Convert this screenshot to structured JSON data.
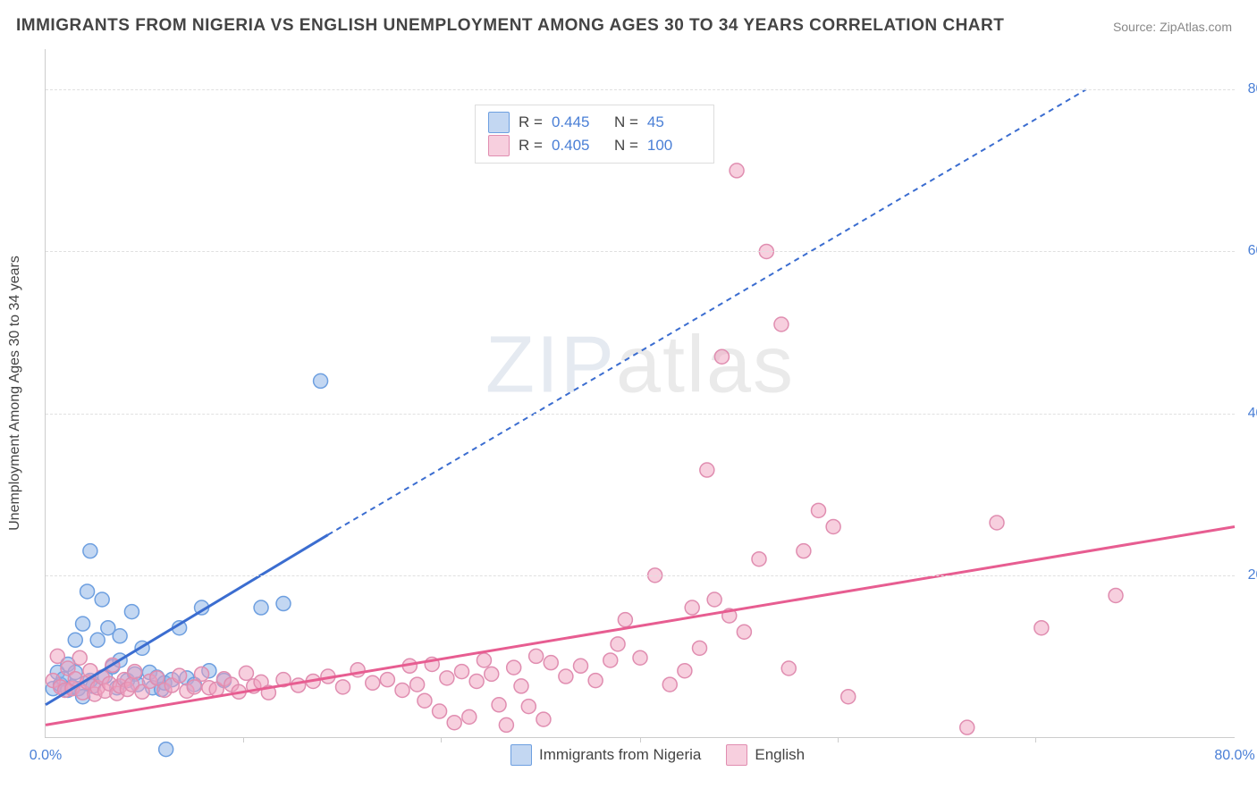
{
  "title": "IMMIGRANTS FROM NIGERIA VS ENGLISH UNEMPLOYMENT AMONG AGES 30 TO 34 YEARS CORRELATION CHART",
  "source": "Source: ZipAtlas.com",
  "watermark": {
    "bold": "ZIP",
    "thin": "atlas"
  },
  "y_axis_label": "Unemployment Among Ages 30 to 34 years",
  "chart": {
    "type": "scatter",
    "xlim": [
      0,
      80
    ],
    "ylim": [
      0,
      85
    ],
    "x_ticks": [
      0,
      80
    ],
    "x_tick_labels": [
      "0.0%",
      "80.0%"
    ],
    "x_minor_ticks": [
      13.3,
      26.6,
      40,
      53.3,
      66.6
    ],
    "y_ticks": [
      20,
      40,
      60,
      80
    ],
    "y_tick_labels": [
      "20.0%",
      "40.0%",
      "60.0%",
      "80.0%"
    ],
    "background_color": "#ffffff",
    "grid_color": "#e0e0e0",
    "marker_radius": 8,
    "series": [
      {
        "name": "Immigrants from Nigeria",
        "short": "nigeria",
        "color_fill": "rgba(135,175,230,0.5)",
        "color_stroke": "#6d9fe0",
        "r_label": "R =",
        "r_value": "0.445",
        "n_label": "N =",
        "n_value": "45",
        "trend_solid": {
          "x1": 0,
          "y1": 4,
          "x2": 19,
          "y2": 25
        },
        "trend_dash": {
          "x1": 19,
          "y1": 25,
          "x2": 70,
          "y2": 80
        },
        "trend_color": "#3b6dd0",
        "points": [
          [
            0.5,
            6
          ],
          [
            0.8,
            8
          ],
          [
            1,
            6.5
          ],
          [
            1.2,
            7.2
          ],
          [
            1.5,
            5.8
          ],
          [
            1.5,
            9
          ],
          [
            1.8,
            6.2
          ],
          [
            2,
            12
          ],
          [
            2,
            8
          ],
          [
            2.2,
            6
          ],
          [
            2.5,
            5
          ],
          [
            2.5,
            14
          ],
          [
            2.8,
            18
          ],
          [
            3,
            7
          ],
          [
            3,
            23
          ],
          [
            3.2,
            6.3
          ],
          [
            3.5,
            12
          ],
          [
            3.8,
            17
          ],
          [
            4,
            7.5
          ],
          [
            4.2,
            13.5
          ],
          [
            4.5,
            8.7
          ],
          [
            4.8,
            6.1
          ],
          [
            5,
            9.5
          ],
          [
            5,
            12.5
          ],
          [
            5.5,
            7
          ],
          [
            5.8,
            15.5
          ],
          [
            6,
            7.8
          ],
          [
            6.2,
            6.5
          ],
          [
            6.5,
            11
          ],
          [
            7,
            8
          ],
          [
            7.2,
            6.1
          ],
          [
            7.5,
            7.4
          ],
          [
            7.8,
            5.9
          ],
          [
            8,
            6.7
          ],
          [
            8.1,
            -1.5
          ],
          [
            8.5,
            7.1
          ],
          [
            9,
            13.5
          ],
          [
            9.5,
            7.3
          ],
          [
            10,
            6.5
          ],
          [
            10.5,
            16
          ],
          [
            11,
            8.2
          ],
          [
            12,
            7
          ],
          [
            14.5,
            16
          ],
          [
            16,
            16.5
          ],
          [
            18.5,
            44
          ]
        ]
      },
      {
        "name": "English",
        "short": "english",
        "color_fill": "rgba(240,160,190,0.5)",
        "color_stroke": "#e08db0",
        "r_label": "R =",
        "r_value": "0.405",
        "n_label": "N =",
        "n_value": "100",
        "trend_solid": {
          "x1": 0,
          "y1": 1.5,
          "x2": 80,
          "y2": 26
        },
        "trend_dash": null,
        "trend_color": "#e75d91",
        "points": [
          [
            0.5,
            7
          ],
          [
            0.8,
            10
          ],
          [
            1,
            6.2
          ],
          [
            1.3,
            5.8
          ],
          [
            1.5,
            8.5
          ],
          [
            1.8,
            6
          ],
          [
            2,
            7.2
          ],
          [
            2.3,
            9.8
          ],
          [
            2.5,
            5.5
          ],
          [
            2.8,
            6.8
          ],
          [
            3,
            8.2
          ],
          [
            3.3,
            5.3
          ],
          [
            3.5,
            6.1
          ],
          [
            3.8,
            7.4
          ],
          [
            4,
            5.7
          ],
          [
            4.3,
            6.6
          ],
          [
            4.5,
            8.9
          ],
          [
            4.8,
            5.4
          ],
          [
            5,
            6.3
          ],
          [
            5.3,
            7.1
          ],
          [
            5.5,
            5.9
          ],
          [
            5.8,
            6.5
          ],
          [
            6,
            8.1
          ],
          [
            6.5,
            5.6
          ],
          [
            7,
            6.9
          ],
          [
            7.5,
            7.3
          ],
          [
            8,
            5.8
          ],
          [
            8.5,
            6.4
          ],
          [
            9,
            7.6
          ],
          [
            9.5,
            5.7
          ],
          [
            10,
            6.2
          ],
          [
            10.5,
            7.8
          ],
          [
            11,
            6.1
          ],
          [
            11.5,
            5.9
          ],
          [
            12,
            7.2
          ],
          [
            12.5,
            6.5
          ],
          [
            13,
            5.6
          ],
          [
            13.5,
            7.9
          ],
          [
            14,
            6.3
          ],
          [
            14.5,
            6.8
          ],
          [
            15,
            5.5
          ],
          [
            16,
            7.1
          ],
          [
            17,
            6.4
          ],
          [
            18,
            6.9
          ],
          [
            19,
            7.5
          ],
          [
            20,
            6.2
          ],
          [
            21,
            8.3
          ],
          [
            22,
            6.7
          ],
          [
            23,
            7.1
          ],
          [
            24,
            5.8
          ],
          [
            24.5,
            8.8
          ],
          [
            25,
            6.5
          ],
          [
            25.5,
            4.5
          ],
          [
            26,
            9
          ],
          [
            26.5,
            3.2
          ],
          [
            27,
            7.3
          ],
          [
            27.5,
            1.8
          ],
          [
            28,
            8.1
          ],
          [
            28.5,
            2.5
          ],
          [
            29,
            6.9
          ],
          [
            29.5,
            9.5
          ],
          [
            30,
            7.8
          ],
          [
            30.5,
            4
          ],
          [
            31,
            1.5
          ],
          [
            31.5,
            8.6
          ],
          [
            32,
            6.3
          ],
          [
            32.5,
            3.8
          ],
          [
            33,
            10
          ],
          [
            33.5,
            2.2
          ],
          [
            34,
            9.2
          ],
          [
            35,
            7.5
          ],
          [
            36,
            8.8
          ],
          [
            37,
            7
          ],
          [
            38,
            9.5
          ],
          [
            38.5,
            11.5
          ],
          [
            39,
            14.5
          ],
          [
            40,
            9.8
          ],
          [
            41,
            20
          ],
          [
            42,
            6.5
          ],
          [
            43,
            8.2
          ],
          [
            43.5,
            16
          ],
          [
            44,
            11
          ],
          [
            44.5,
            33
          ],
          [
            45,
            17
          ],
          [
            45.5,
            47
          ],
          [
            46,
            15
          ],
          [
            46.5,
            70
          ],
          [
            47,
            13
          ],
          [
            48,
            22
          ],
          [
            48.5,
            60
          ],
          [
            49.5,
            51
          ],
          [
            50,
            8.5
          ],
          [
            51,
            23
          ],
          [
            52,
            28
          ],
          [
            53,
            26
          ],
          [
            54,
            5
          ],
          [
            62,
            1.2
          ],
          [
            64,
            26.5
          ],
          [
            67,
            13.5
          ],
          [
            72,
            17.5
          ]
        ]
      }
    ]
  }
}
